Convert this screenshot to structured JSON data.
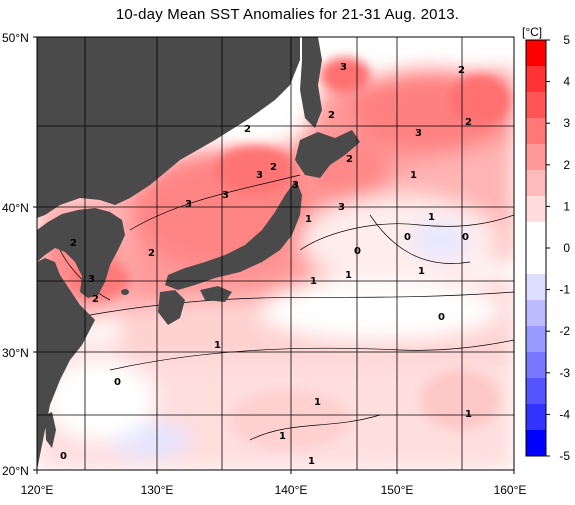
{
  "title": "10-day Mean SST Anomalies for 21-31 Aug. 2013.",
  "unit": "[°C]",
  "lat_ticks": [
    "50°N",
    "40°N",
    "30°N",
    "20°N"
  ],
  "lon_ticks": [
    "120°E",
    "130°E",
    "140°E",
    "150°E",
    "160°E"
  ],
  "colorbar": {
    "values": [
      "5",
      "4",
      "3",
      "2",
      "1",
      "0",
      "-1",
      "-2",
      "-3",
      "-4",
      "-5"
    ],
    "colors": [
      "#ff0000",
      "#ff3333",
      "#ff5555",
      "#ff7777",
      "#ff9999",
      "#ffbbbb",
      "#ffdddd",
      "#ffffff",
      "#ffffff",
      "#ddddff",
      "#bbbbff",
      "#9999ff",
      "#7777ff",
      "#5555ff",
      "#3333ff",
      "#0000ff"
    ]
  },
  "contour_labels": [
    "3",
    "2",
    "2",
    "2",
    "3",
    "2",
    "3",
    "3",
    "2",
    "1",
    "2",
    "3",
    "3",
    "2",
    "3",
    "2",
    "1",
    "1",
    "0",
    "0",
    "0",
    "1",
    "1",
    "0",
    "1",
    "1",
    "0",
    "1",
    "1",
    "1",
    "1",
    "0"
  ],
  "colors": {
    "land": "#4a4a4a",
    "frame": "#000000"
  }
}
